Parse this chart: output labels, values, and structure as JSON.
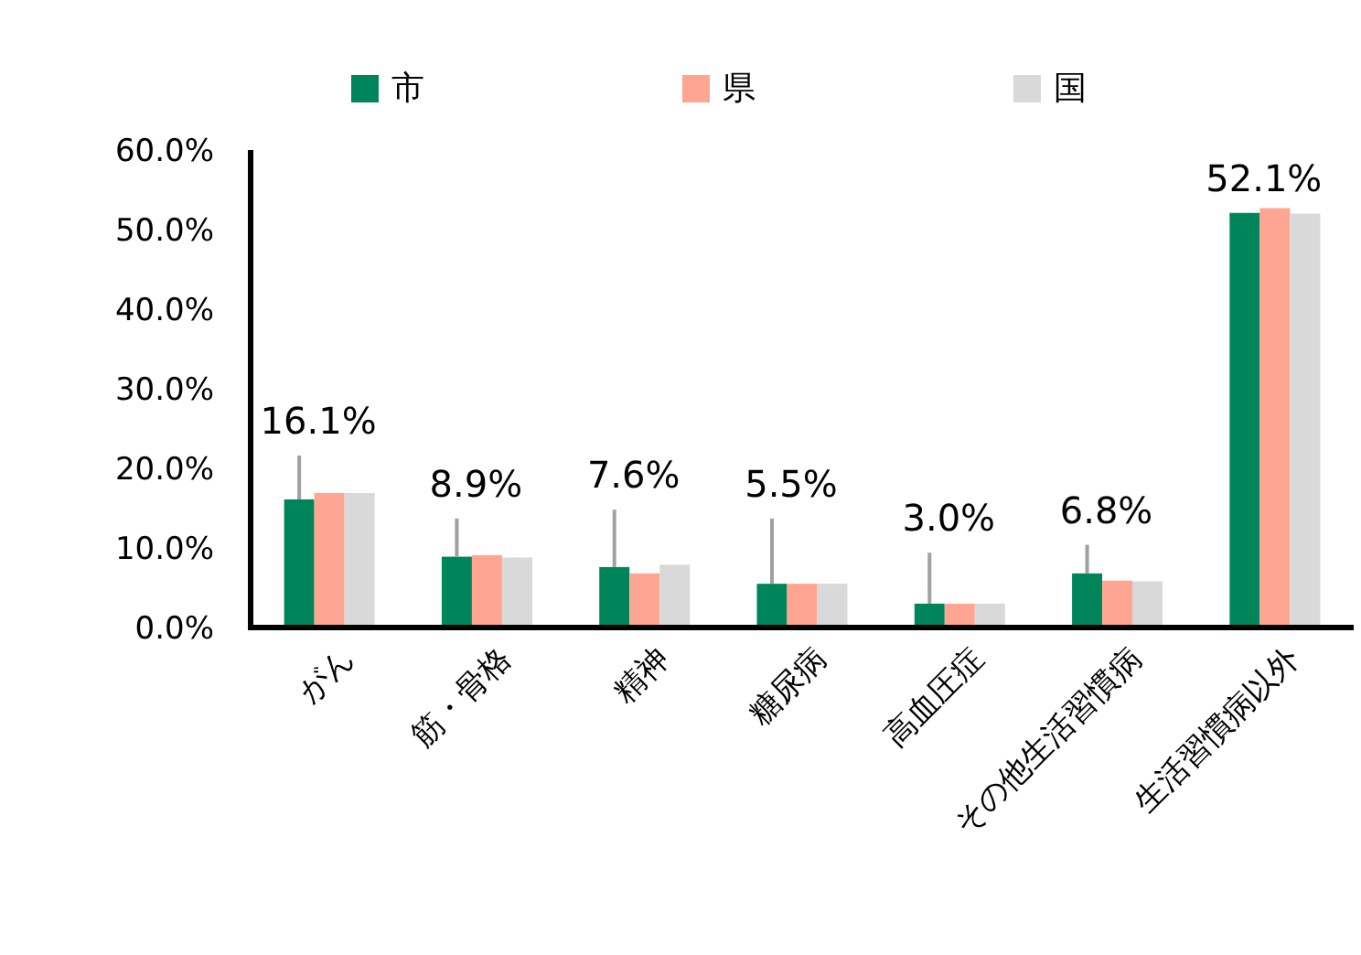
{
  "chart_data": {
    "type": "bar",
    "categories": [
      "がん",
      "筋・骨格",
      "精神",
      "糖尿病",
      "高血圧症",
      "その他生活習慣病",
      "生活習慣病以外"
    ],
    "series": [
      {
        "name": "市",
        "color": "#00845a",
        "values": [
          16.1,
          8.9,
          7.6,
          5.5,
          3.0,
          6.8,
          52.1
        ],
        "value_labels": [
          "16.1%",
          "8.9%",
          "7.6%",
          "5.5%",
          "3.0%",
          "6.8%",
          "52.1%"
        ],
        "errors": [
          [
            16.1,
            21.6
          ],
          [
            8.9,
            13.7
          ],
          [
            7.6,
            14.8
          ],
          [
            5.5,
            13.7
          ],
          [
            3.0,
            9.4
          ],
          [
            6.8,
            10.4
          ],
          null
        ]
      },
      {
        "name": "県",
        "color": "#ffa591",
        "values": [
          16.9,
          9.1,
          6.8,
          5.5,
          3.0,
          5.9,
          52.7
        ]
      },
      {
        "name": "国",
        "color": "#d9d9d9",
        "values": [
          16.9,
          8.8,
          7.9,
          5.5,
          3.0,
          5.8,
          52.0
        ]
      }
    ],
    "ylim": [
      0,
      60
    ],
    "yticks": [
      {
        "value": 0,
        "label": "0.0%"
      },
      {
        "value": 10,
        "label": "10.0%"
      },
      {
        "value": 20,
        "label": "20.0%"
      },
      {
        "value": 30,
        "label": "30.0%"
      },
      {
        "value": 40,
        "label": "40.0%"
      },
      {
        "value": 50,
        "label": "50.0%"
      },
      {
        "value": 60,
        "label": "60.0%"
      }
    ],
    "grid": false,
    "legend": "top"
  }
}
